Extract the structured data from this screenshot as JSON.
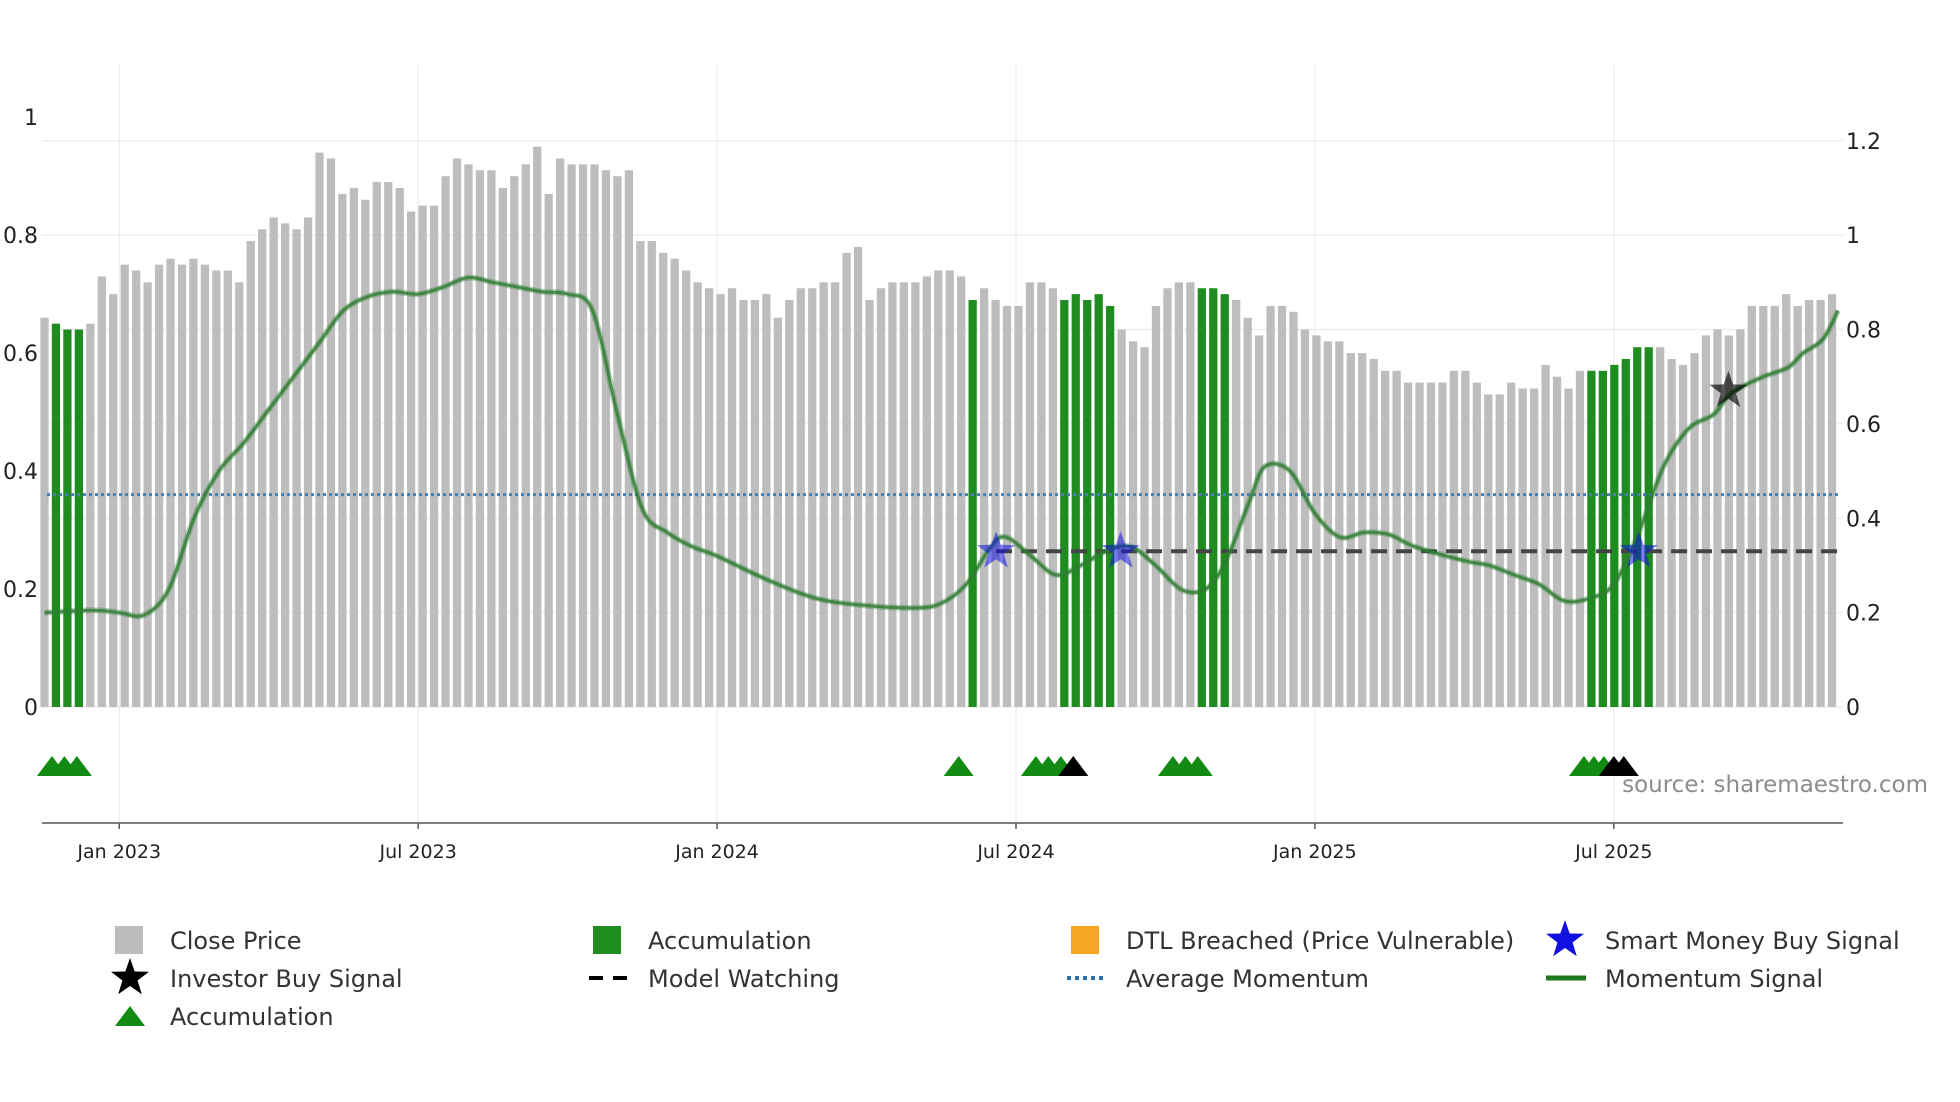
{
  "chart_data": {
    "type": "bar",
    "source_text": "source: sharemaestro.com",
    "colors": {
      "close_price": "#bdbdbd",
      "accumulation_bar": "#1e8c1e",
      "dtl_breached": "#f5a623",
      "momentum": "#2e7d32",
      "average_momentum": "#4a7fb5",
      "model_watching": "#444444",
      "smart_money_star": "#1010e0",
      "investor_star": "#000000",
      "triangle_green": "#138a13"
    },
    "x_axis": {
      "range_months": [
        -1.55,
        34.6
      ],
      "ticks": [
        {
          "label": "Jan 2023",
          "month": 0
        },
        {
          "label": "Jul 2023",
          "month": 6
        },
        {
          "label": "Jan 2024",
          "month": 12
        },
        {
          "label": "Jul 2024",
          "month": 18
        },
        {
          "label": "Jan 2025",
          "month": 24
        },
        {
          "label": "Jul 2025",
          "month": 30
        }
      ]
    },
    "y_left": {
      "range": [
        0,
        1.08
      ],
      "ticks": [
        {
          "label": "0",
          "value": 0
        },
        {
          "label": "0.2",
          "value": 0.2
        },
        {
          "label": "0.4",
          "value": 0.4
        },
        {
          "label": "0.6",
          "value": 0.6
        },
        {
          "label": "0.8",
          "value": 0.8
        },
        {
          "label": "1",
          "value": 1.0
        }
      ]
    },
    "y_right": {
      "range": [
        0,
        1.35
      ],
      "ticks": [
        {
          "label": "0",
          "value": 0
        },
        {
          "label": "0.2",
          "value": 0.2
        },
        {
          "label": "0.4",
          "value": 0.4
        },
        {
          "label": "0.6",
          "value": 0.6
        },
        {
          "label": "0.8",
          "value": 0.8
        },
        {
          "label": "1",
          "value": 1.0
        },
        {
          "label": "1.2",
          "value": 1.2
        }
      ]
    },
    "close_price": {
      "start_month": -1.5,
      "step_months": 0.23,
      "values": [
        0.66,
        0.65,
        0.64,
        0.64,
        0.65,
        0.73,
        0.7,
        0.75,
        0.74,
        0.72,
        0.75,
        0.76,
        0.75,
        0.76,
        0.75,
        0.74,
        0.74,
        0.72,
        0.79,
        0.81,
        0.83,
        0.82,
        0.81,
        0.83,
        0.94,
        0.93,
        0.87,
        0.88,
        0.86,
        0.89,
        0.89,
        0.88,
        0.84,
        0.85,
        0.85,
        0.9,
        0.93,
        0.92,
        0.91,
        0.91,
        0.88,
        0.9,
        0.92,
        0.95,
        0.87,
        0.93,
        0.92,
        0.92,
        0.92,
        0.91,
        0.9,
        0.91,
        0.79,
        0.79,
        0.77,
        0.76,
        0.74,
        0.72,
        0.71,
        0.7,
        0.71,
        0.69,
        0.69,
        0.7,
        0.66,
        0.69,
        0.71,
        0.71,
        0.72,
        0.72,
        0.77,
        0.78,
        0.69,
        0.71,
        0.72,
        0.72,
        0.72,
        0.73,
        0.74,
        0.74,
        0.73,
        0.69,
        0.71,
        0.69,
        0.68,
        0.68,
        0.72,
        0.72,
        0.71,
        0.69,
        0.7,
        0.69,
        0.7,
        0.68,
        0.64,
        0.62,
        0.61,
        0.68,
        0.71,
        0.72,
        0.72,
        0.71,
        0.71,
        0.7,
        0.69,
        0.66,
        0.63,
        0.68,
        0.68,
        0.67,
        0.64,
        0.63,
        0.62,
        0.62,
        0.6,
        0.6,
        0.59,
        0.57,
        0.57,
        0.55,
        0.55,
        0.55,
        0.55,
        0.57,
        0.57,
        0.55,
        0.53,
        0.53,
        0.55,
        0.54,
        0.54,
        0.58,
        0.56,
        0.54,
        0.57,
        0.57,
        0.57,
        0.58,
        0.59,
        0.61,
        0.61,
        0.61,
        0.59,
        0.58,
        0.6,
        0.63,
        0.64,
        0.63,
        0.64,
        0.68,
        0.68,
        0.68,
        0.7,
        0.68,
        0.69,
        0.69,
        0.7
      ],
      "accumulation_indices": [
        1,
        2,
        3,
        81,
        89,
        90,
        91,
        92,
        93,
        101,
        102,
        103,
        135,
        136,
        137,
        138,
        139,
        140
      ]
    },
    "momentum_signal": {
      "x": [
        -1.5,
        -0.5,
        0,
        0.5,
        1.0,
        1.5,
        2.0,
        2.5,
        3.0,
        3.5,
        4.0,
        4.5,
        5.0,
        5.5,
        6.0,
        6.5,
        7.0,
        7.5,
        8.0,
        8.5,
        9.0,
        9.5,
        10.0,
        10.5,
        11.0,
        11.5,
        12.0,
        13.0,
        14.0,
        15.0,
        16.0,
        16.5,
        17.0,
        17.5,
        17.8,
        18.3,
        18.8,
        19.3,
        19.8,
        20.3,
        20.8,
        21.3,
        21.7,
        22.0,
        22.3,
        22.7,
        23.0,
        23.5,
        24.0,
        24.5,
        25.0,
        25.5,
        26.0,
        27.0,
        27.5,
        28.0,
        28.5,
        29.0,
        29.5,
        30.0,
        30.5,
        31.0,
        31.5,
        32.0,
        32.3,
        32.6,
        33.0,
        33.5,
        33.8,
        34.2,
        34.5
      ],
      "y": [
        0.2,
        0.205,
        0.2,
        0.195,
        0.25,
        0.4,
        0.5,
        0.56,
        0.63,
        0.7,
        0.77,
        0.84,
        0.87,
        0.88,
        0.875,
        0.89,
        0.91,
        0.9,
        0.89,
        0.88,
        0.875,
        0.84,
        0.62,
        0.42,
        0.37,
        0.34,
        0.32,
        0.27,
        0.23,
        0.215,
        0.21,
        0.22,
        0.26,
        0.34,
        0.36,
        0.32,
        0.28,
        0.3,
        0.33,
        0.34,
        0.3,
        0.25,
        0.245,
        0.27,
        0.33,
        0.44,
        0.51,
        0.5,
        0.41,
        0.36,
        0.37,
        0.365,
        0.34,
        0.31,
        0.3,
        0.28,
        0.26,
        0.225,
        0.23,
        0.26,
        0.37,
        0.51,
        0.59,
        0.62,
        0.66,
        0.68,
        0.7,
        0.72,
        0.75,
        0.78,
        0.84
      ]
    },
    "average_momentum": 0.45,
    "model_watching": {
      "value": 0.33,
      "x_range": [
        17.6,
        34.5
      ]
    },
    "smart_money_buy_signals": [
      {
        "month": 17.6,
        "value": 0.33
      },
      {
        "month": 20.1,
        "value": 0.33
      },
      {
        "month": 30.5,
        "value": 0.33
      }
    ],
    "investor_buy_signals": [
      {
        "month": 32.3,
        "value": 0.67
      }
    ],
    "accumulation_triangles_green": [
      -1.35,
      -1.1,
      -0.85,
      16.85,
      18.4,
      18.65,
      18.9,
      21.15,
      21.4,
      21.65,
      29.4,
      29.6,
      29.8
    ],
    "accumulation_triangles_black": [
      19.15,
      30.0,
      30.2
    ],
    "legend": [
      {
        "label": "Close Price",
        "type": "square",
        "color": "#bdbdbd"
      },
      {
        "label": "Accumulation",
        "type": "square",
        "color": "#1e8c1e"
      },
      {
        "label": "DTL Breached (Price Vulnerable)",
        "type": "square",
        "color": "#f5a623"
      },
      {
        "label": "Smart Money Buy Signal",
        "type": "star",
        "color": "#1010e0"
      },
      {
        "label": "Investor Buy Signal",
        "type": "star",
        "color": "#000000"
      },
      {
        "label": "Model Watching",
        "type": "dash",
        "color": "#000000"
      },
      {
        "label": "Average Momentum",
        "type": "dotted",
        "color": "#2a6fa8"
      },
      {
        "label": "Momentum Signal",
        "type": "line",
        "color": "#1e7a1e"
      },
      {
        "label": "Accumulation",
        "type": "triangle",
        "color": "#138a13"
      }
    ]
  }
}
